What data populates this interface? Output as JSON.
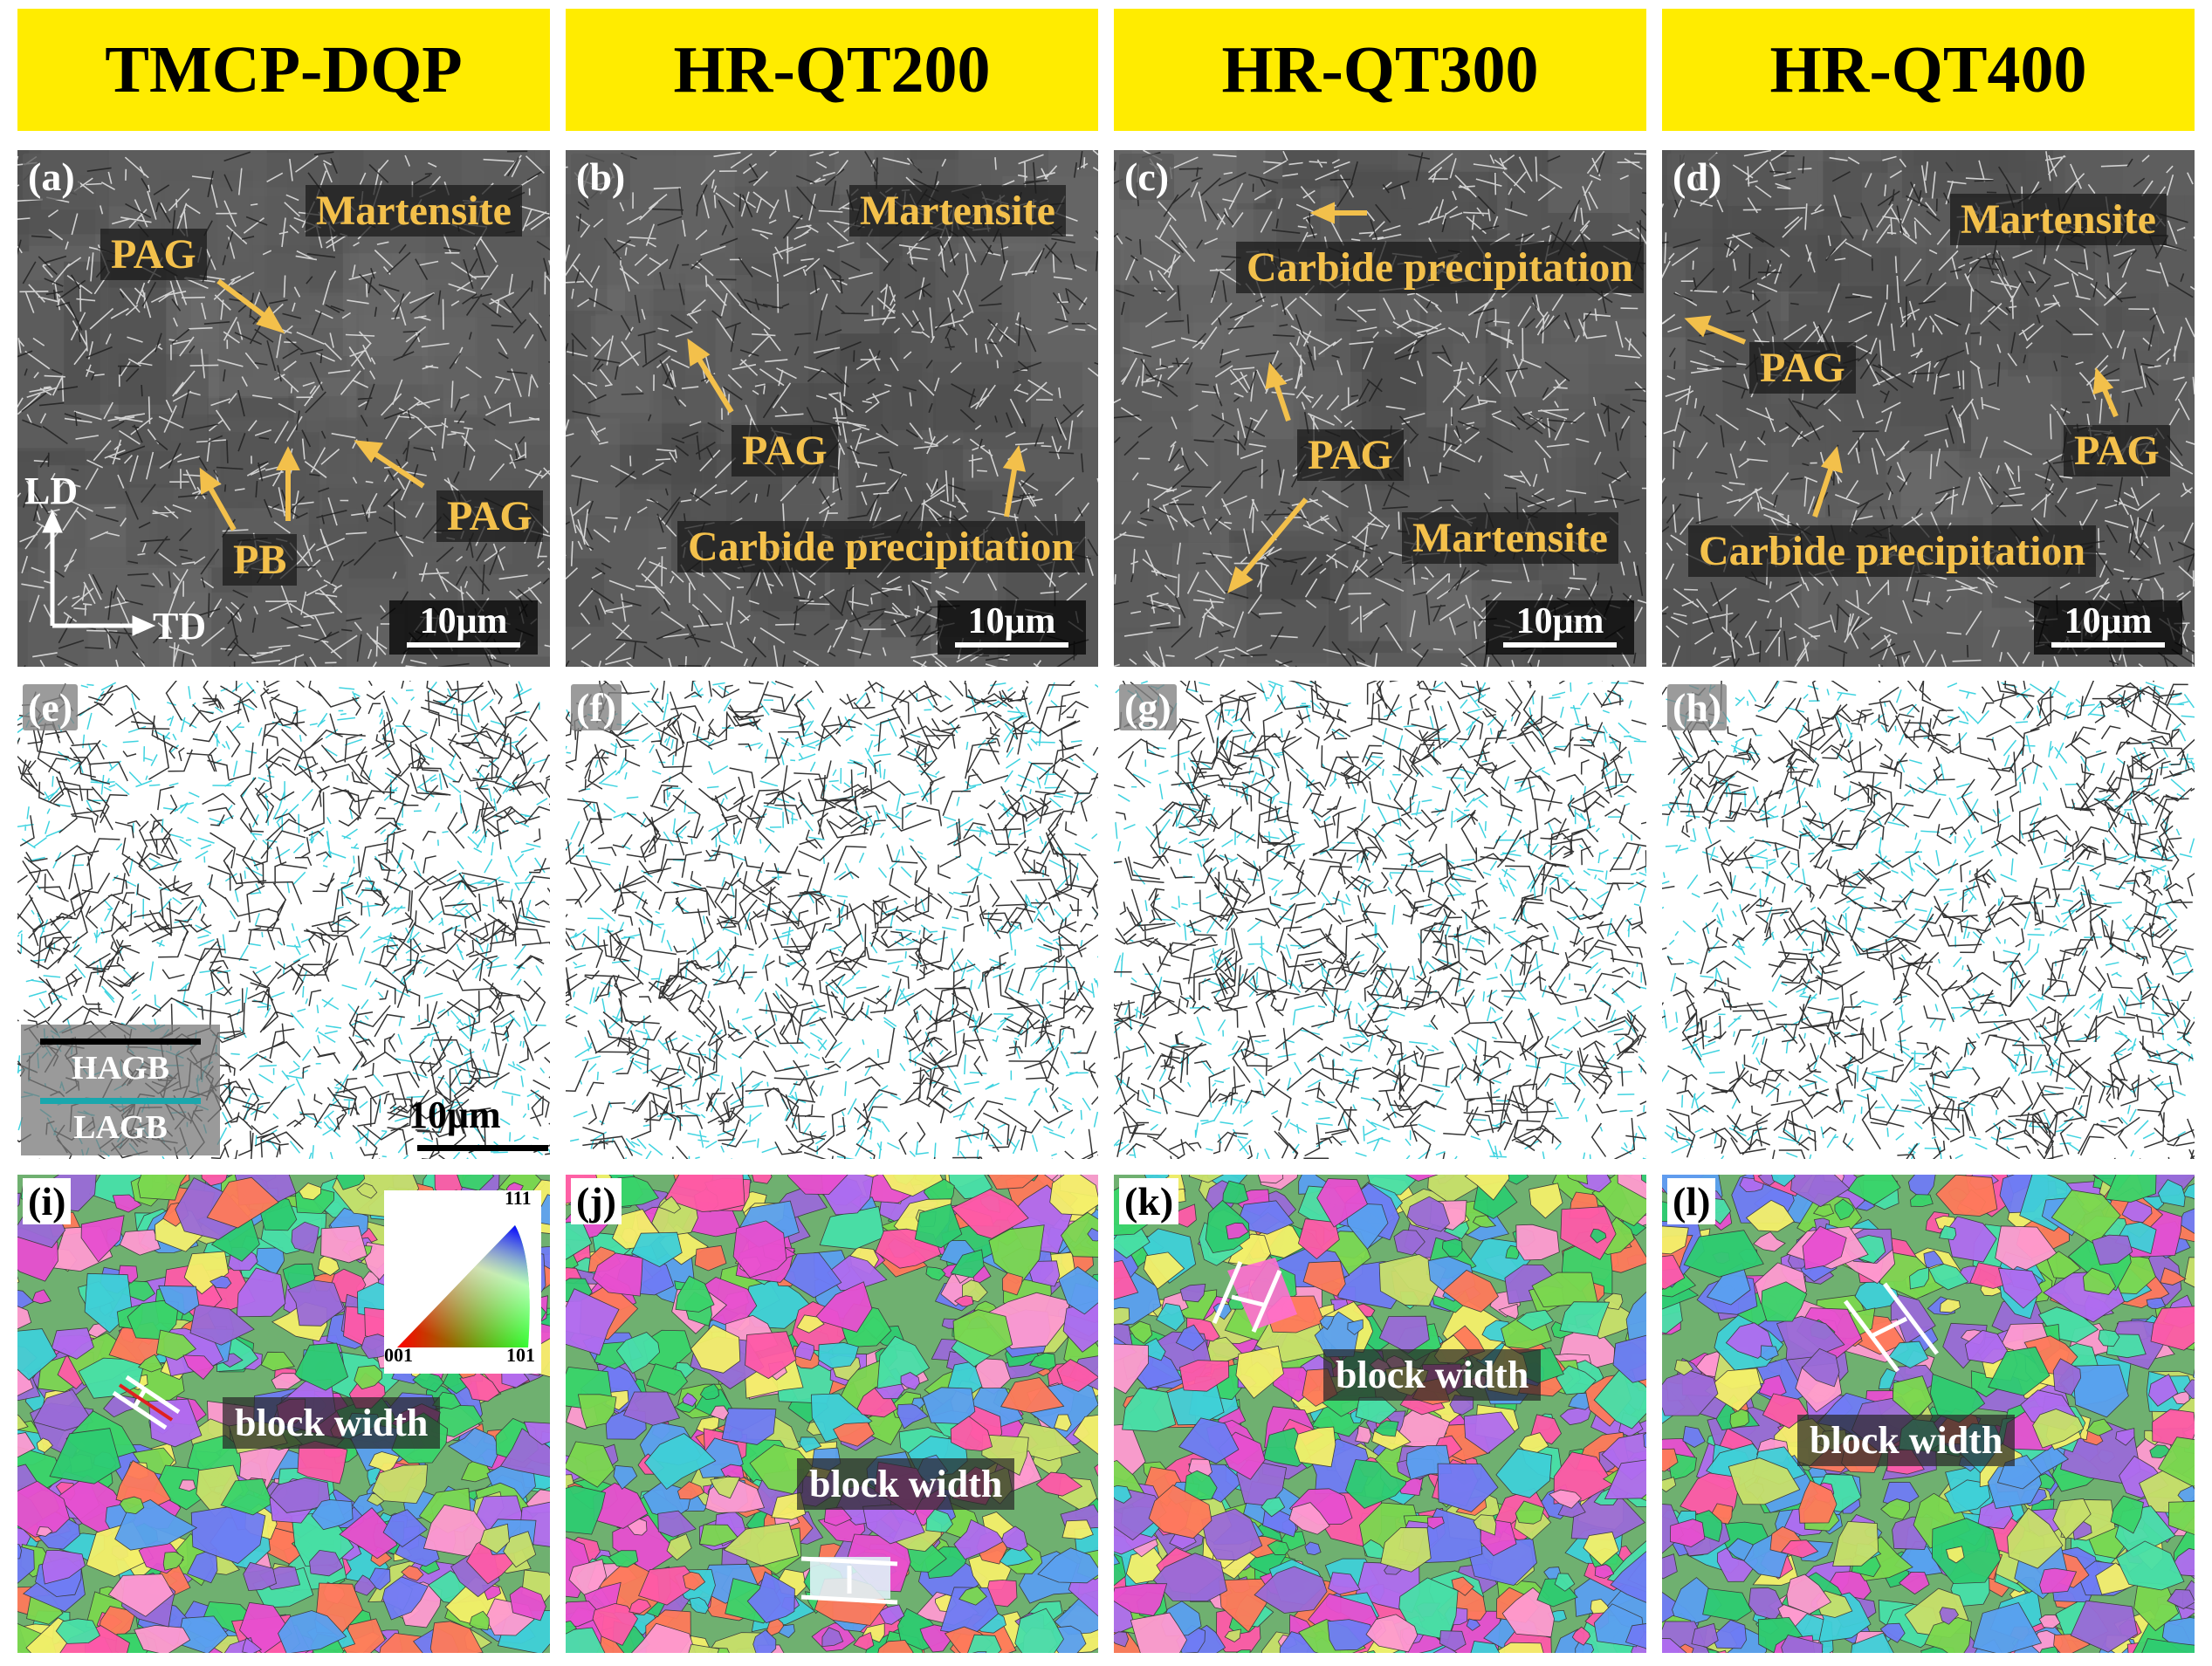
{
  "headers": [
    "TMCP-DQP",
    "HR-QT200",
    "HR-QT300",
    "HR-QT400"
  ],
  "panel_labels": {
    "sem": [
      "(a)",
      "(b)",
      "(c)",
      "(d)"
    ],
    "gb": [
      "(e)",
      "(f)",
      "(g)",
      "(h)"
    ],
    "ipf": [
      "(i)",
      "(j)",
      "(k)",
      "(l)"
    ]
  },
  "annotations": {
    "a": {
      "martensite": "Martensite",
      "pag1": "PAG",
      "pag2": "PAG",
      "pb": "PB"
    },
    "b": {
      "martensite": "Martensite",
      "pag": "PAG",
      "carbide": "Carbide precipitation"
    },
    "c": {
      "carbide": "Carbide precipitation",
      "pag": "PAG",
      "martensite": "Martensite"
    },
    "d": {
      "martensite": "Martensite",
      "pag1": "PAG",
      "pag2": "PAG",
      "carbide": "Carbide precipitation"
    }
  },
  "axes": {
    "ld": "LD",
    "td": "TD"
  },
  "scale_bar": "10μm",
  "legend": {
    "hagb": "HAGB",
    "lagb": "LAGB"
  },
  "ipf_key": {
    "top": "111",
    "left": "001",
    "right": "101"
  },
  "block_width": "block width",
  "colors": {
    "header_bg": "#ffec00",
    "annotation_text": "#f3c04b",
    "arrow": "#f3c04b",
    "lagb": "#3fd3e0",
    "hagb": "#333333"
  }
}
